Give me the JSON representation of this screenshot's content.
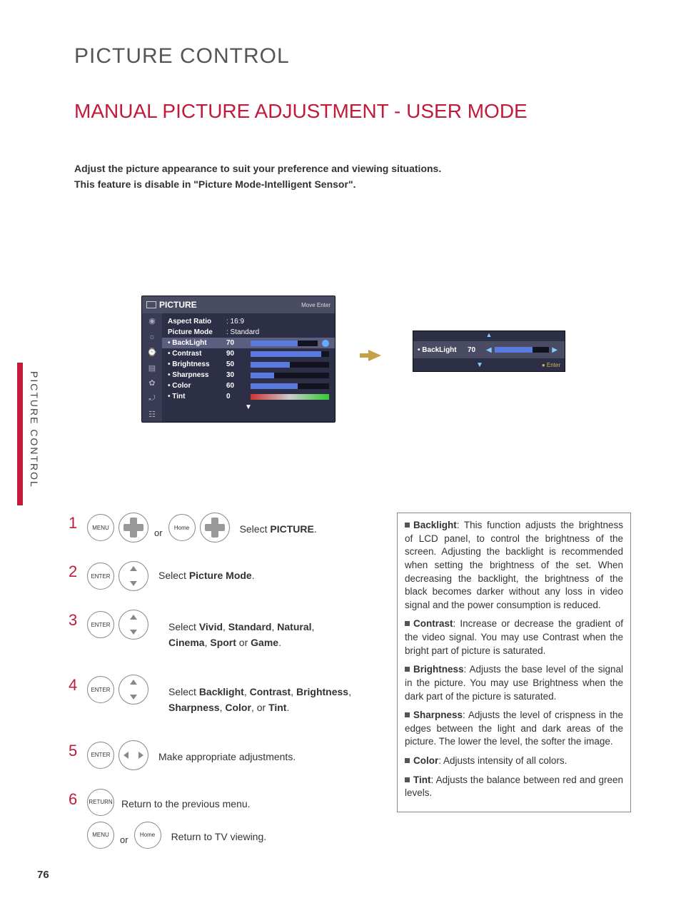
{
  "page": {
    "title": "PICTURE CONTROL",
    "section": "MANUAL PICTURE ADJUSTMENT - USER MODE",
    "intro1": "Adjust the picture appearance to suit your preference and viewing situations.",
    "intro2_pre": "This feature is disable in \"",
    "intro2_bold": "Picture Mode-Intelligent Sensor",
    "intro2_post": "\".",
    "side_label": "PICTURE CONTROL",
    "page_number": "76"
  },
  "osd": {
    "title": "PICTURE",
    "hint": "Move   Enter",
    "aspect_k": "Aspect Ratio",
    "aspect_v": ": 16:9",
    "mode_k": "Picture Mode",
    "mode_v": ": Standard",
    "rows": [
      {
        "label": "• BackLight",
        "value": "70",
        "pct": 70,
        "hl": true,
        "circle": true
      },
      {
        "label": "• Contrast",
        "value": "90",
        "pct": 90
      },
      {
        "label": "• Brightness",
        "value": "50",
        "pct": 50
      },
      {
        "label": "• Sharpness",
        "value": "30",
        "pct": 30
      },
      {
        "label": "• Color",
        "value": "60",
        "pct": 60
      },
      {
        "label": "• Tint",
        "value": "0",
        "tint": true
      }
    ],
    "footer_arrow": "▼"
  },
  "osd2": {
    "up": "▲",
    "label": "• BackLight",
    "value": "70",
    "pct": 70,
    "left": "◀",
    "right": "▶",
    "down": "▼",
    "enter": "● Enter"
  },
  "steps": {
    "s1_or": "or",
    "s1_txt_pre": "Select ",
    "s1_txt_b": "PICTURE",
    "s1_txt_post": ".",
    "s2_txt_pre": "Select ",
    "s2_txt_b": "Picture Mode",
    "s2_txt_post": ".",
    "s3_line": "Select <b>Vivid</b>, <b>Standard</b>, <b>Natural</b>,<br><b>Cinema</b>, <b>Sport</b> or <b>Game</b>.",
    "s4_line": "Select <b>Backlight</b>, <b>Contrast</b>, <b>Brightness</b>,<br><b>Sharpness</b>, <b>Color</b>, or <b>Tint</b>.",
    "s5_line": "Make appropriate adjustments.",
    "s6_line": "Return to the previous menu.",
    "s7_or": "or",
    "s7_line": "Return to TV viewing.",
    "btn_menu": "MENU",
    "btn_home": "Home",
    "btn_enter": "ENTER",
    "btn_return": "RETURN"
  },
  "defs": {
    "d1": "<span class=\"sq\"></span><b>Backlight</b>: This function adjusts the brightness of LCD panel, to control the brightness of the screen. Adjusting the backlight is recommended when setting the brightness of the set. When decreasing the backlight, the brightness of the black becomes darker without any loss in video signal and the power consumption is reduced.",
    "d2": "<span class=\"sq\"></span><b>Contrast</b>: Increase or decrease the gradient of the video signal. You may use Contrast when the bright part of picture is saturated.",
    "d3": "<span class=\"sq\"></span><b>Brightness</b>: Adjusts the base level of the signal in the picture. You may use Brightness when the dark part of the picture is saturated.",
    "d4": "<span class=\"sq\"></span><b>Sharpness</b>: Adjusts the level of crispness in the edges between the light and dark areas of the picture. The lower the level, the softer the image.",
    "d5": "<span class=\"sq\"></span><b>Color</b>: Adjusts intensity of all colors.",
    "d6": "<span class=\"sq\"></span><b>Tint</b>: Adjusts the balance between red and green levels."
  }
}
